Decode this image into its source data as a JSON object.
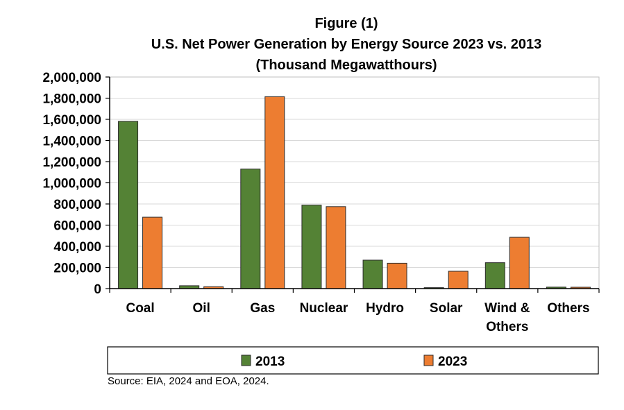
{
  "chart_data": {
    "type": "bar",
    "title_lines": [
      "Figure (1)",
      "U.S. Net Power Generation by Energy Source  2023 vs. 2013",
      "(Thousand Megawatthours)"
    ],
    "categories": [
      [
        "Coal"
      ],
      [
        "Oil"
      ],
      [
        "Gas"
      ],
      [
        "Nuclear"
      ],
      [
        "Hydro"
      ],
      [
        "Solar"
      ],
      [
        "Wind &",
        "Others"
      ],
      [
        "Others"
      ]
    ],
    "series": [
      {
        "name": "2013",
        "color": "#548235",
        "values": [
          1581000,
          27000,
          1130000,
          789000,
          269000,
          9000,
          245000,
          14000
        ]
      },
      {
        "name": "2023",
        "color": "#ED7D31",
        "values": [
          675000,
          18000,
          1814000,
          775000,
          240000,
          164000,
          485000,
          13000
        ]
      }
    ],
    "ylim": [
      0,
      2000000
    ],
    "yticks": [
      0,
      200000,
      400000,
      600000,
      800000,
      1000000,
      1200000,
      1400000,
      1600000,
      1800000,
      2000000
    ],
    "ytick_labels": [
      "0",
      "200,000",
      "400,000",
      "600,000",
      "800,000",
      "1,000,000",
      "1,200,000",
      "1,400,000",
      "1,600,000",
      "1,800,000",
      "2,000,000"
    ],
    "grid": true,
    "legend_position": "bottom"
  },
  "source_text": "Source: EIA, 2024 and EOA, 2024."
}
